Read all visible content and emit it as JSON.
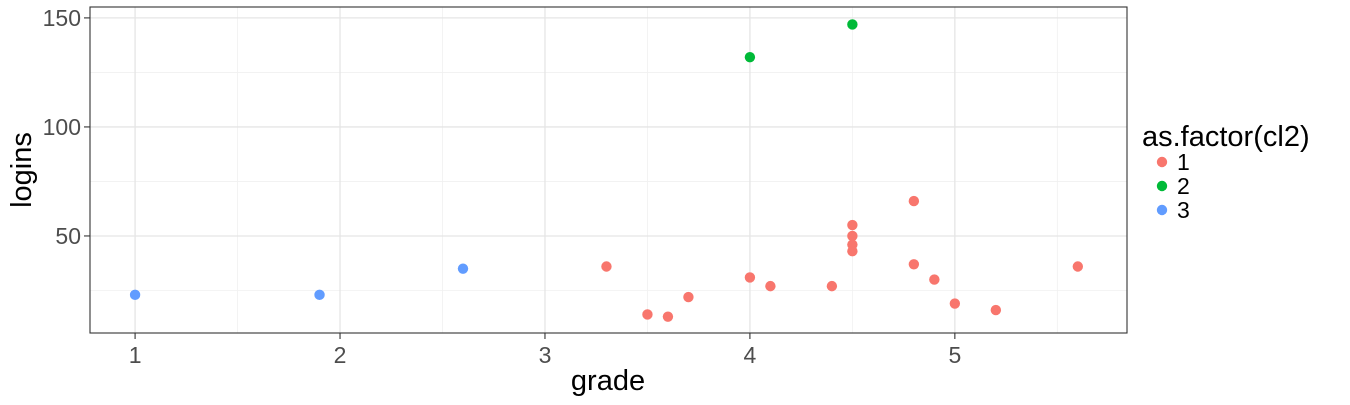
{
  "chart_data": {
    "type": "scatter",
    "title": "",
    "xlabel": "grade",
    "ylabel": "logins",
    "xlim": [
      0.78,
      5.84
    ],
    "ylim": [
      5.5,
      155
    ],
    "x_ticks": [
      1,
      2,
      3,
      4,
      5
    ],
    "x_tick_labels": [
      "1",
      "2",
      "3",
      "4",
      "5"
    ],
    "x_minor_ticks": [
      1.5,
      2.5,
      3.5,
      4.5,
      5.5
    ],
    "y_ticks": [
      50,
      100,
      150
    ],
    "y_tick_labels": [
      "50",
      "100",
      "150"
    ],
    "y_minor_ticks": [
      25,
      75,
      125
    ],
    "grid": true,
    "legend": {
      "title": "as.factor(cl2)",
      "position": "right",
      "entries": [
        {
          "label": "1",
          "color": "#F8766D"
        },
        {
          "label": "2",
          "color": "#00BA38"
        },
        {
          "label": "3",
          "color": "#619CFF"
        }
      ]
    },
    "series": [
      {
        "name": "1",
        "color": "#F8766D",
        "points": [
          {
            "x": 3.3,
            "y": 36
          },
          {
            "x": 3.5,
            "y": 14
          },
          {
            "x": 3.6,
            "y": 13
          },
          {
            "x": 3.7,
            "y": 22
          },
          {
            "x": 4.0,
            "y": 31
          },
          {
            "x": 4.1,
            "y": 27
          },
          {
            "x": 4.4,
            "y": 27
          },
          {
            "x": 4.5,
            "y": 55
          },
          {
            "x": 4.5,
            "y": 50
          },
          {
            "x": 4.5,
            "y": 46
          },
          {
            "x": 4.5,
            "y": 43
          },
          {
            "x": 4.8,
            "y": 66
          },
          {
            "x": 4.8,
            "y": 37
          },
          {
            "x": 4.9,
            "y": 30
          },
          {
            "x": 5.0,
            "y": 19
          },
          {
            "x": 5.2,
            "y": 16
          },
          {
            "x": 5.6,
            "y": 36
          }
        ]
      },
      {
        "name": "2",
        "color": "#00BA38",
        "points": [
          {
            "x": 4.0,
            "y": 132
          },
          {
            "x": 4.5,
            "y": 147
          }
        ]
      },
      {
        "name": "3",
        "color": "#619CFF",
        "points": [
          {
            "x": 1.0,
            "y": 23
          },
          {
            "x": 1.9,
            "y": 23
          },
          {
            "x": 2.6,
            "y": 35
          }
        ]
      }
    ]
  }
}
